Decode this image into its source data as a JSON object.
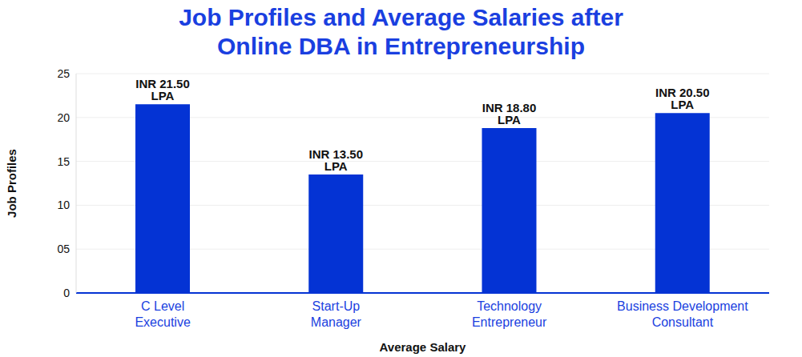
{
  "chart_data": {
    "type": "bar",
    "title": "Job Profiles and Average Salaries after Online DBA in Entrepreneurship",
    "x_label": "Average Salary",
    "y_label": "Job Profiles",
    "categories": [
      "C Level Executive",
      "Start-Up Manager",
      "Technology Entrepreneur",
      "Business Development Consultant"
    ],
    "values": [
      21.5,
      13.5,
      18.8,
      20.5
    ],
    "value_labels": [
      "INR 21.50 LPA",
      "INR 13.50 LPA",
      "INR 18.80 LPA",
      "INR 20.50 LPA"
    ],
    "data_labels": true,
    "color": "#0433d4",
    "ylim": [
      0,
      25
    ],
    "yticks": [
      0,
      {
        "value": 5,
        "label": "05"
      },
      10,
      15,
      20,
      25
    ],
    "grid": true
  }
}
